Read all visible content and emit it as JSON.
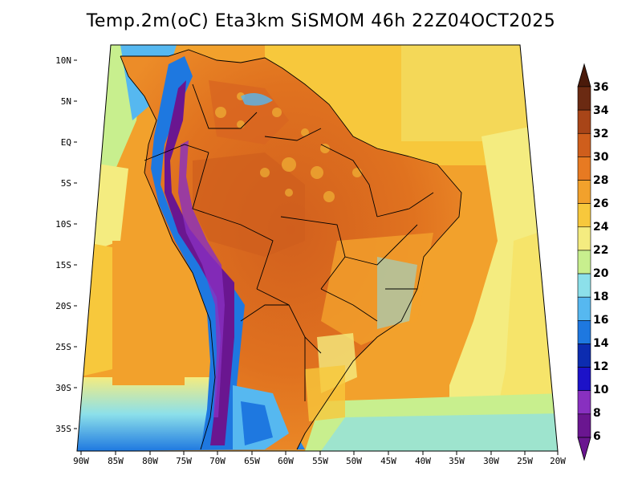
{
  "title": "Temp.2m(oC) Eta3km SiSMOM 46h 22Z04OCT2025",
  "map": {
    "lat_labels": [
      "10N",
      "5N",
      "EQ",
      "5S",
      "10S",
      "15S",
      "20S",
      "25S",
      "30S",
      "35S"
    ],
    "lon_labels": [
      "90W",
      "85W",
      "80W",
      "75W",
      "70W",
      "65W",
      "60W",
      "55W",
      "50W",
      "45W",
      "40W",
      "35W",
      "30W",
      "25W",
      "20W"
    ],
    "lat_range": [
      -38,
      12
    ],
    "lon_range": [
      -91,
      -19
    ]
  },
  "colorbar": {
    "labels": [
      "36",
      "34",
      "32",
      "30",
      "28",
      "26",
      "24",
      "22",
      "20",
      "18",
      "16",
      "14",
      "12",
      "10",
      "8",
      "6"
    ],
    "colors": [
      "#6b2a12",
      "#a84518",
      "#cf5e1c",
      "#e77a22",
      "#f2a12c",
      "#f7c83c",
      "#f4ec80",
      "#c8ef8e",
      "#8ce0ea",
      "#56b8f0",
      "#1e78e0",
      "#0c2cb0",
      "#1c12c8",
      "#8830c0",
      "#6a1690"
    ],
    "top_color": "#4a1a0a",
    "bottom_color": "#6a1690"
  }
}
